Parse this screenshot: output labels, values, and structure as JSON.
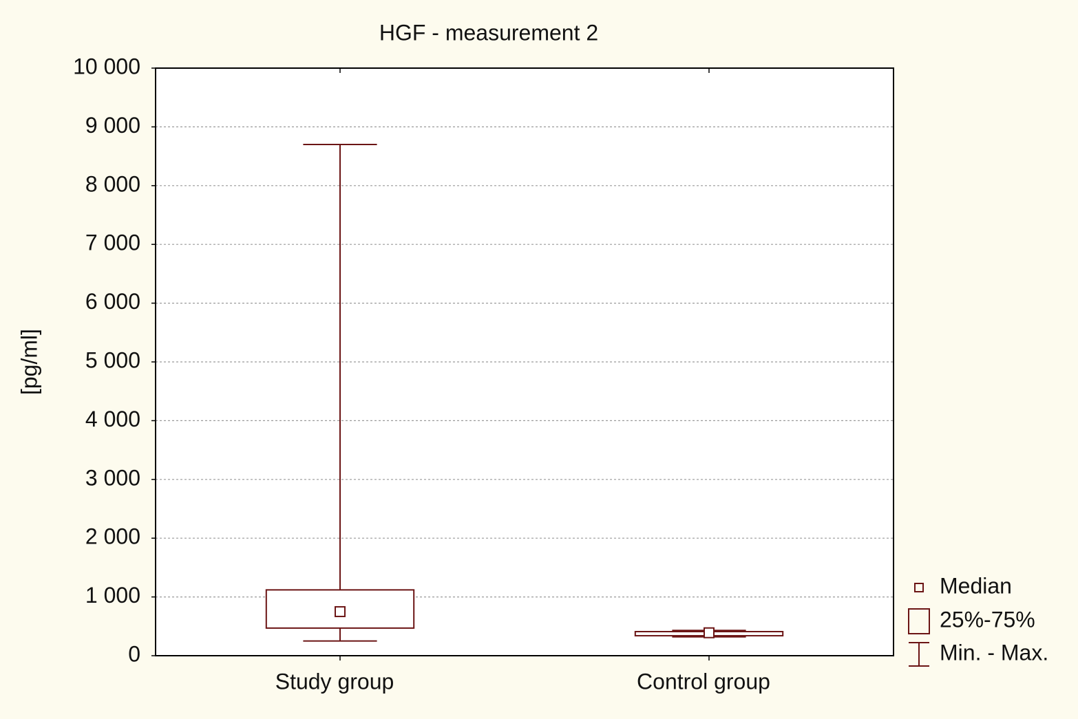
{
  "chart_data": {
    "type": "box",
    "title": "HGF - measurement 2",
    "y_label": "[pg/ml]",
    "categories": [
      "Study group",
      "Control group"
    ],
    "min": [
      250,
      320
    ],
    "q1": [
      470,
      340
    ],
    "median": [
      750,
      390
    ],
    "q3": [
      1120,
      410
    ],
    "max": [
      8700,
      430
    ],
    "color": "#6b1414",
    "ylim": [
      0,
      10000
    ],
    "yticks": [
      0,
      {
        "value": 1000,
        "label": "1 000"
      },
      {
        "value": 2000,
        "label": "2 000"
      },
      {
        "value": 3000,
        "label": "3 000"
      },
      {
        "value": 4000,
        "label": "4 000"
      },
      {
        "value": 5000,
        "label": "5 000"
      },
      {
        "value": 6000,
        "label": "6 000"
      },
      {
        "value": 7000,
        "label": "7 000"
      },
      {
        "value": 8000,
        "label": "8 000"
      },
      {
        "value": 9000,
        "label": "9 000"
      },
      {
        "value": 10000,
        "label": "10 000"
      }
    ],
    "grid": true,
    "legend": [
      "Median",
      "25%-75%",
      "Min. - Max."
    ]
  }
}
